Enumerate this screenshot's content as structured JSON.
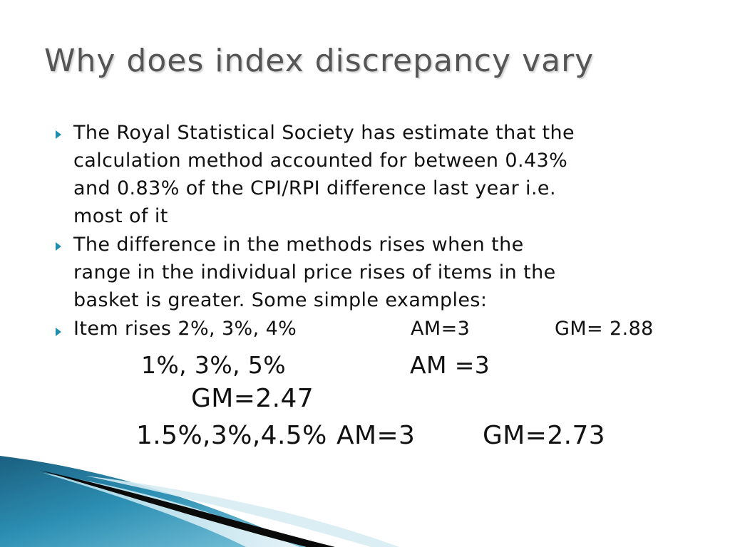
{
  "slide": {
    "title": "Why does index discrepancy vary",
    "bullets": [
      {
        "lines": [
          "The Royal Statistical Society has estimate that the",
          "calculation method accounted for between 0.43%",
          "and 0.83% of the CPI/RPI difference last year i.e.",
          "most of it"
        ]
      },
      {
        "lines": [
          "The difference in the methods rises when the",
          "range in the individual price rises of items in the",
          "basket is greater. Some simple examples:"
        ]
      }
    ],
    "example_bullet": {
      "items": "Item rises 2%, 3%, 4%",
      "am": "AM=3",
      "gm": "GM= 2.88"
    },
    "example2": {
      "items": "1%, 3%, 5%",
      "am": "AM =3",
      "gm": "GM=2.47"
    },
    "example3": {
      "items": "1.5%,3%,4.5%",
      "am": "AM=3",
      "gm": "GM=2.73"
    },
    "colors": {
      "title": "#555555",
      "text": "#111111",
      "bullet": "#1f8fb0",
      "accent_dark": "#1b5f80",
      "accent_light": "#7fc6dc"
    }
  }
}
